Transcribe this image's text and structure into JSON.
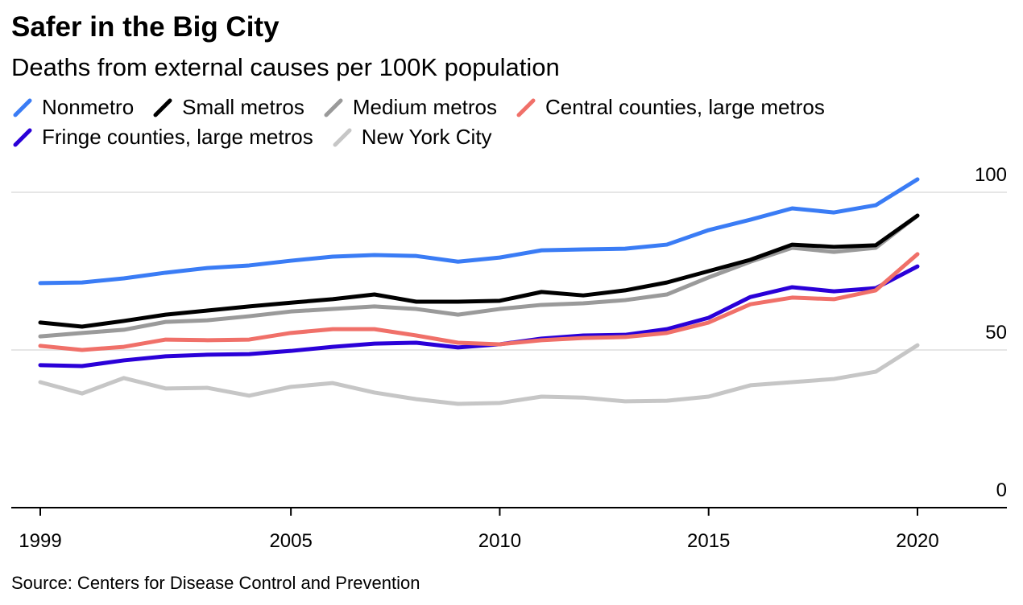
{
  "chart_data": {
    "type": "line",
    "title": "Safer in the Big City",
    "subtitle": "Deaths from external causes per 100K population",
    "source": "Source: Centers for Disease Control and Prevention",
    "x": [
      1999,
      2000,
      2001,
      2002,
      2003,
      2004,
      2005,
      2006,
      2007,
      2008,
      2009,
      2010,
      2011,
      2012,
      2013,
      2014,
      2015,
      2016,
      2017,
      2018,
      2019,
      2020
    ],
    "xticks": [
      1999,
      2005,
      2010,
      2015,
      2020
    ],
    "xtick_labels": [
      "1999",
      "2005",
      "2010",
      "2015",
      "2020"
    ],
    "yticks": [
      0,
      50,
      100
    ],
    "ytick_labels": [
      "0",
      "50",
      "100"
    ],
    "ylim": [
      0,
      100
    ],
    "xlim": [
      1999,
      2021.5
    ],
    "grid": true,
    "legend_position": "top-left",
    "series": [
      {
        "name": "Nonmetro",
        "color": "#3a7cf5",
        "values": [
          71.2,
          71.4,
          72.7,
          74.5,
          76,
          76.8,
          78.3,
          79.6,
          80.1,
          79.8,
          78,
          79.3,
          81.6,
          81.9,
          82.1,
          83.4,
          88,
          91.3,
          94.9,
          93.6,
          95.9,
          104.1
        ]
      },
      {
        "name": "Small metros",
        "color": "#000000",
        "values": [
          58.7,
          57.4,
          59.2,
          61.2,
          62.5,
          63.8,
          65,
          66.1,
          67.6,
          65.3,
          65.3,
          65.6,
          68.4,
          67.3,
          68.9,
          71.4,
          75,
          78.6,
          83.4,
          82.7,
          83.2,
          92.6
        ]
      },
      {
        "name": "Medium metros",
        "color": "#9a9a9a",
        "values": [
          54.3,
          55.4,
          56.4,
          58.9,
          59.4,
          60.7,
          62.2,
          63,
          63.8,
          63,
          61.2,
          63,
          64.3,
          64.8,
          65.8,
          67.6,
          73,
          78,
          82.4,
          81.1,
          82.4,
          92.6
        ]
      },
      {
        "name": "Central counties, large metros",
        "color": "#f07069",
        "values": [
          51.3,
          50,
          51,
          53.3,
          53.1,
          53.3,
          55.4,
          56.6,
          56.6,
          54.6,
          52.3,
          51.8,
          53.1,
          53.8,
          54.1,
          55.4,
          58.7,
          64.5,
          66.6,
          66.1,
          68.9,
          80.4
        ]
      },
      {
        "name": "Fringe counties, large metros",
        "color": "#2a00d8",
        "values": [
          45.2,
          44.9,
          46.7,
          48,
          48.5,
          48.7,
          49.7,
          51,
          52,
          52.3,
          50.8,
          51.8,
          53.6,
          54.6,
          54.8,
          56.6,
          60.2,
          66.8,
          69.9,
          68.6,
          69.6,
          76.5
        ]
      },
      {
        "name": "New York City",
        "color": "#c6c6c6",
        "values": [
          39.8,
          36.2,
          41.1,
          37.8,
          38,
          35.5,
          38.3,
          39.5,
          36.5,
          34.4,
          32.9,
          33.2,
          35.2,
          34.9,
          33.7,
          33.9,
          35.2,
          38.8,
          39.8,
          40.8,
          43.1,
          51.5
        ]
      }
    ]
  }
}
